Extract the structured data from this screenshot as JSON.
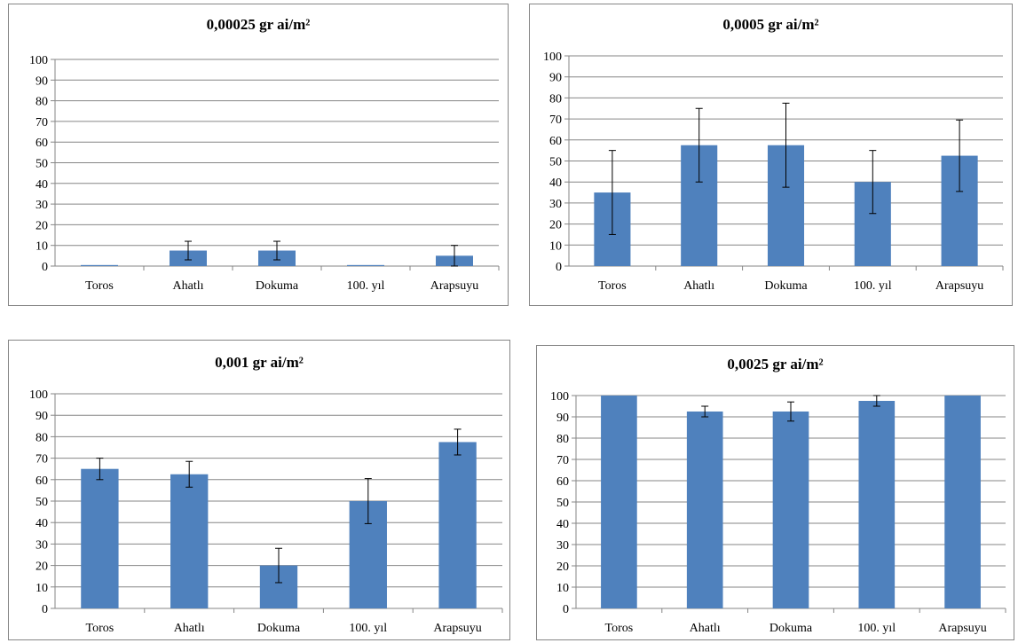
{
  "colors": {
    "bar": "#4f81bd",
    "grid": "#868686",
    "error_bar": "#000000"
  },
  "chart_data": [
    {
      "type": "bar",
      "title": "0,00025 gr ai/m²",
      "categories": [
        "Toros",
        "Ahatlı",
        "Dokuma",
        "100. yıl",
        "Arapsuyu"
      ],
      "values": [
        0.5,
        7.5,
        7.5,
        0.5,
        5
      ],
      "error": [
        0,
        4.5,
        4.5,
        0,
        5
      ],
      "yticks": [
        "0",
        "10",
        "20",
        "30",
        "40",
        "50",
        "60",
        "70",
        "80",
        "90",
        "100"
      ],
      "ylim": [
        0,
        100
      ],
      "grid": true,
      "legend": "none"
    },
    {
      "type": "bar",
      "title": "0,0005 gr ai/m²",
      "categories": [
        "Toros",
        "Ahatlı",
        "Dokuma",
        "100. yıl",
        "Arapsuyu"
      ],
      "values": [
        35,
        57.5,
        57.5,
        40,
        52.5
      ],
      "error": [
        20,
        17.5,
        20,
        15,
        17
      ],
      "yticks": [
        "0",
        "10",
        "20",
        "30",
        "40",
        "50",
        "60",
        "70",
        "80",
        "90",
        "100"
      ],
      "ylim": [
        0,
        100
      ],
      "grid": true,
      "legend": "none"
    },
    {
      "type": "bar",
      "title": "0,001 gr ai/m²",
      "categories": [
        "Toros",
        "Ahatlı",
        "Dokuma",
        "100. yıl",
        "Arapsuyu"
      ],
      "values": [
        65,
        62.5,
        20,
        50,
        77.5
      ],
      "error": [
        5,
        6,
        8,
        10.5,
        6
      ],
      "yticks": [
        "0",
        "10",
        "20",
        "30",
        "40",
        "50",
        "60",
        "70",
        "80",
        "90",
        "100"
      ],
      "ylim": [
        0,
        100
      ],
      "grid": true,
      "legend": "none"
    },
    {
      "type": "bar",
      "title": "0,0025 gr ai/m²",
      "categories": [
        "Toros",
        "Ahatlı",
        "Dokuma",
        "100. yıl",
        "Arapsuyu"
      ],
      "values": [
        100,
        92.5,
        92.5,
        97.5,
        100
      ],
      "error": [
        0,
        2.5,
        4.5,
        2.5,
        0
      ],
      "yticks": [
        "0",
        "10",
        "20",
        "30",
        "40",
        "50",
        "60",
        "70",
        "80",
        "90",
        "100"
      ],
      "ylim": [
        0,
        100
      ],
      "grid": true,
      "legend": "none"
    }
  ]
}
